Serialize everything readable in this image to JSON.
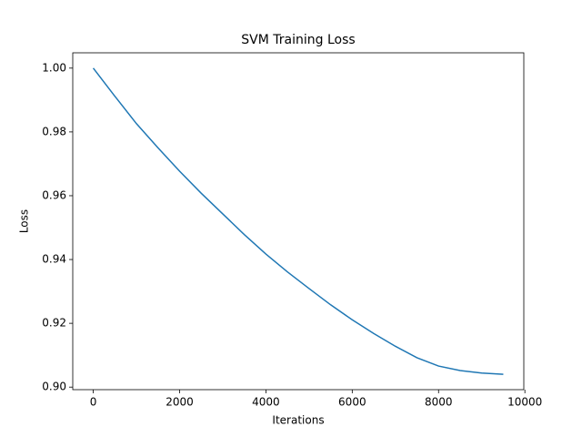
{
  "chart_data": {
    "type": "line",
    "title": "SVM Training Loss",
    "xlabel": "Iterations",
    "ylabel": "Loss",
    "x": [
      0,
      500,
      1000,
      1500,
      2000,
      2500,
      3000,
      3500,
      4000,
      4500,
      5000,
      5500,
      6000,
      6500,
      7000,
      7500,
      8000,
      8500,
      9000,
      9500
    ],
    "series": [
      {
        "name": "Loss",
        "color": "#1f77b4",
        "values": [
          1.0,
          0.9912,
          0.9826,
          0.975,
          0.9677,
          0.9608,
          0.9543,
          0.9478,
          0.9417,
          0.9361,
          0.9309,
          0.9258,
          0.9211,
          0.9168,
          0.9128,
          0.9092,
          0.9066,
          0.9052,
          0.9044,
          0.904
        ]
      }
    ],
    "xlim": [
      -475,
      9975
    ],
    "ylim": [
      0.8992,
      1.0048
    ],
    "xticks": [
      0,
      2000,
      4000,
      6000,
      8000,
      10000
    ],
    "yticks": [
      {
        "value": 0.9,
        "label": "0.90"
      },
      {
        "value": 0.92,
        "label": "0.92"
      },
      {
        "value": 0.94,
        "label": "0.94"
      },
      {
        "value": 0.96,
        "label": "0.96"
      },
      {
        "value": 0.98,
        "label": "0.98"
      },
      {
        "value": 1.0,
        "label": "1.00"
      }
    ],
    "grid": false
  }
}
